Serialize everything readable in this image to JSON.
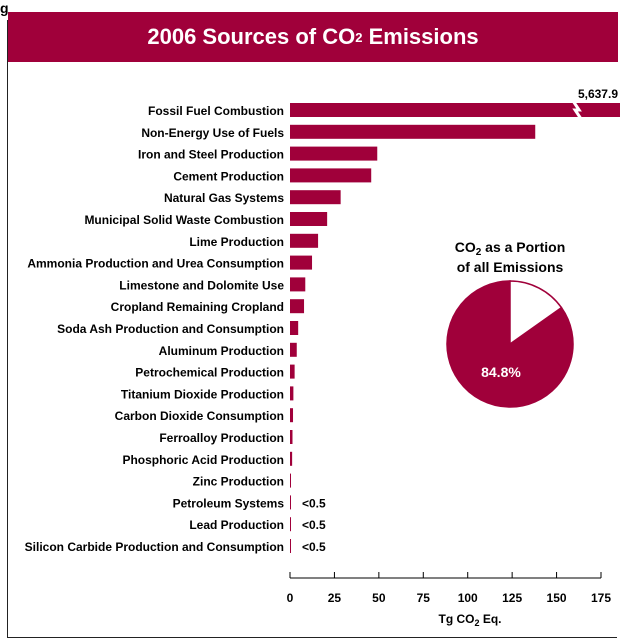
{
  "figure_label": "g",
  "title_main": "2006 Sources of CO",
  "title_sub": "2",
  "title_tail": " Emissions",
  "colors": {
    "bar": "#a0003a",
    "pie_rest": "#ffffff",
    "text": "#000000"
  },
  "chart_data": [
    {
      "type": "bar",
      "orientation": "horizontal",
      "categories": [
        "Fossil Fuel Combustion",
        "Non-Energy Use of Fuels",
        "Iron and Steel Production",
        "Cement Production",
        "Natural Gas Systems",
        "Municipal Solid Waste Combustion",
        "Lime Production",
        "Ammonia Production and Urea Consumption",
        "Limestone and Dolomite Use",
        "Cropland Remaining Cropland",
        "Soda Ash Production and Consumption",
        "Aluminum Production",
        "Petrochemical Production",
        "Titanium Dioxide Production",
        "Carbon Dioxide Consumption",
        "Ferroalloy Production",
        "Phosphoric Acid Production",
        "Zinc Production",
        "Petroleum Systems",
        "Lead Production",
        "Silicon Carbide Production and Consumption"
      ],
      "values": [
        5637.9,
        138.0,
        49.1,
        45.7,
        28.5,
        20.9,
        15.8,
        12.4,
        8.6,
        7.9,
        4.6,
        3.8,
        2.6,
        1.9,
        1.7,
        1.4,
        1.2,
        0.5,
        0.3,
        0.3,
        0.2
      ],
      "value_labels": [
        "5,637.9",
        "",
        "",
        "",
        "",
        "",
        "",
        "",
        "",
        "",
        "",
        "",
        "",
        "",
        "",
        "",
        "",
        "",
        "<0.5",
        "<0.5",
        "<0.5"
      ],
      "broken_axis_categories": [
        "Fossil Fuel Combustion"
      ],
      "xlabel_main": "Tg CO",
      "xlabel_sub": "2",
      "xlabel_tail": " Eq.",
      "xlim": [
        0,
        175
      ],
      "xticks": [
        0,
        25,
        50,
        75,
        100,
        125,
        150,
        175
      ],
      "grid": false
    },
    {
      "type": "pie",
      "title_line1_main": "CO",
      "title_line1_sub": "2",
      "title_line1_tail": " as a Portion",
      "title_line2": "of all Emissions",
      "slices": [
        {
          "label": "84.8%",
          "value": 84.8,
          "color": "#a0003a"
        },
        {
          "label": "",
          "value": 15.2,
          "color": "#ffffff"
        }
      ]
    }
  ]
}
